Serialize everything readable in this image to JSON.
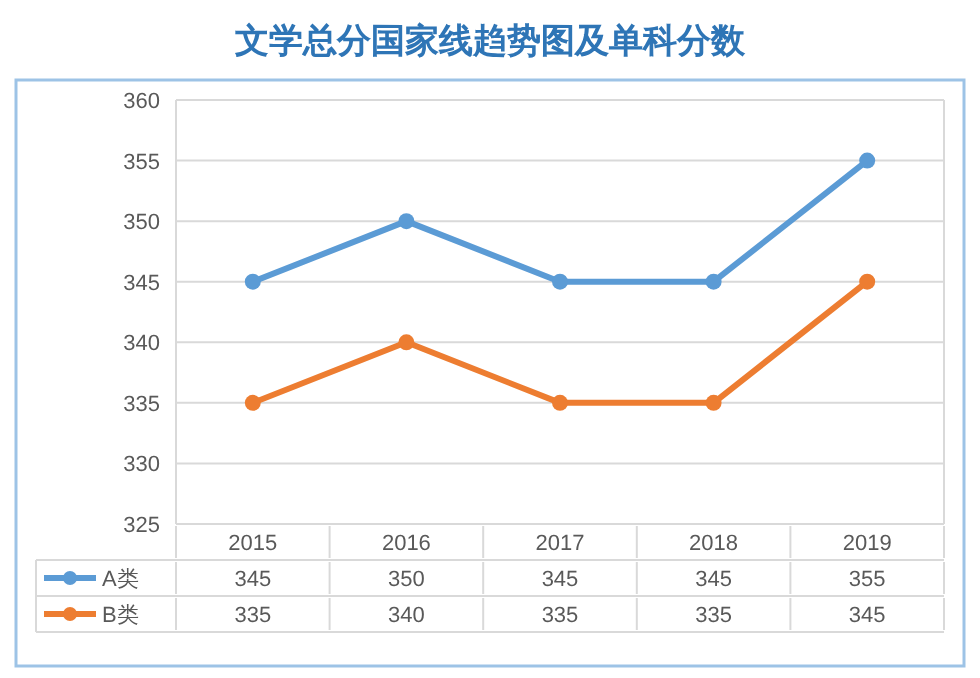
{
  "chart_data": {
    "type": "line",
    "title": "文学总分国家线趋势图及单科分数",
    "categories": [
      "2015",
      "2016",
      "2017",
      "2018",
      "2019"
    ],
    "series": [
      {
        "name": "A类",
        "color": "#5b9bd5",
        "values": [
          345,
          350,
          345,
          345,
          355
        ]
      },
      {
        "name": "B类",
        "color": "#ed7d31",
        "values": [
          335,
          340,
          335,
          335,
          345
        ]
      }
    ],
    "ylim": [
      325,
      360
    ],
    "yticks": [
      325,
      330,
      335,
      340,
      345,
      350,
      355,
      360
    ],
    "grid": "y",
    "legend": "bottom",
    "data_labels": true,
    "marker": "circle",
    "line_style": "solid"
  }
}
